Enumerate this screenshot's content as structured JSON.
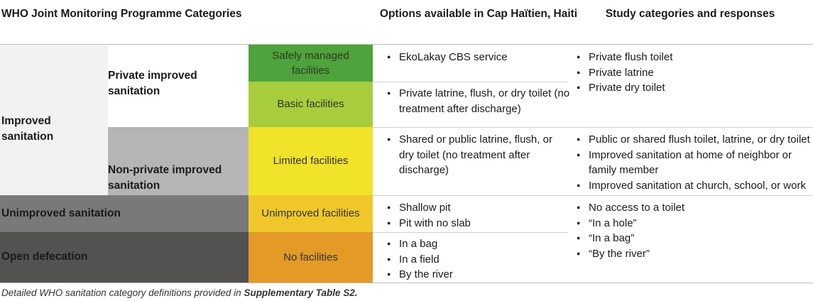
{
  "headers": {
    "col1": "WHO Joint Monitoring Programme Categories",
    "col2": "Options available in Cap Haïtien, Haiti",
    "col3": "Study categories and responses"
  },
  "groups": {
    "improved": "Improved sanitation",
    "private_improved": "Private improved sanitation",
    "nonprivate_improved": "Non-private improved sanitation",
    "unimproved": "Unimproved sanitation",
    "open_defecation": "Open defecation"
  },
  "ladder": [
    {
      "label": "Safely managed facilities",
      "color": "#4ea33c"
    },
    {
      "label": "Basic facilities",
      "color": "#a8cd3c"
    },
    {
      "label": "Limited facilities",
      "color": "#f0e32a"
    },
    {
      "label": "Unimproved facilities",
      "color": "#f0c72a"
    },
    {
      "label": "No facilities",
      "color": "#e39a26"
    }
  ],
  "options": {
    "safely_managed": [
      "EkoLakay CBS service"
    ],
    "basic": [
      "Private latrine, flush, or dry toilet (no treatment after discharge)"
    ],
    "limited": [
      "Shared or public latrine, flush, or dry toilet (no treatment after discharge)"
    ],
    "unimproved": [
      "Shallow pit",
      "Pit with no slab"
    ],
    "none": [
      "In a bag",
      "In a field",
      "By the river"
    ]
  },
  "study": {
    "private": [
      "Private flush toilet",
      "Private latrine",
      "Private dry toilet"
    ],
    "nonprivate": [
      "Public or shared flush toilet, latrine, or dry toilet",
      "Improved sanitation at home of neighbor or family member",
      "Improved sanitation at church, school, or work"
    ],
    "unimproved_open": [
      "No access to a toilet",
      "“In a hole”",
      "“In a bag”",
      "“By the river”"
    ]
  },
  "footnote": {
    "prefix": "Detailed WHO sanitation category definitions provided in ",
    "ref": "Supplementary Table S2."
  }
}
